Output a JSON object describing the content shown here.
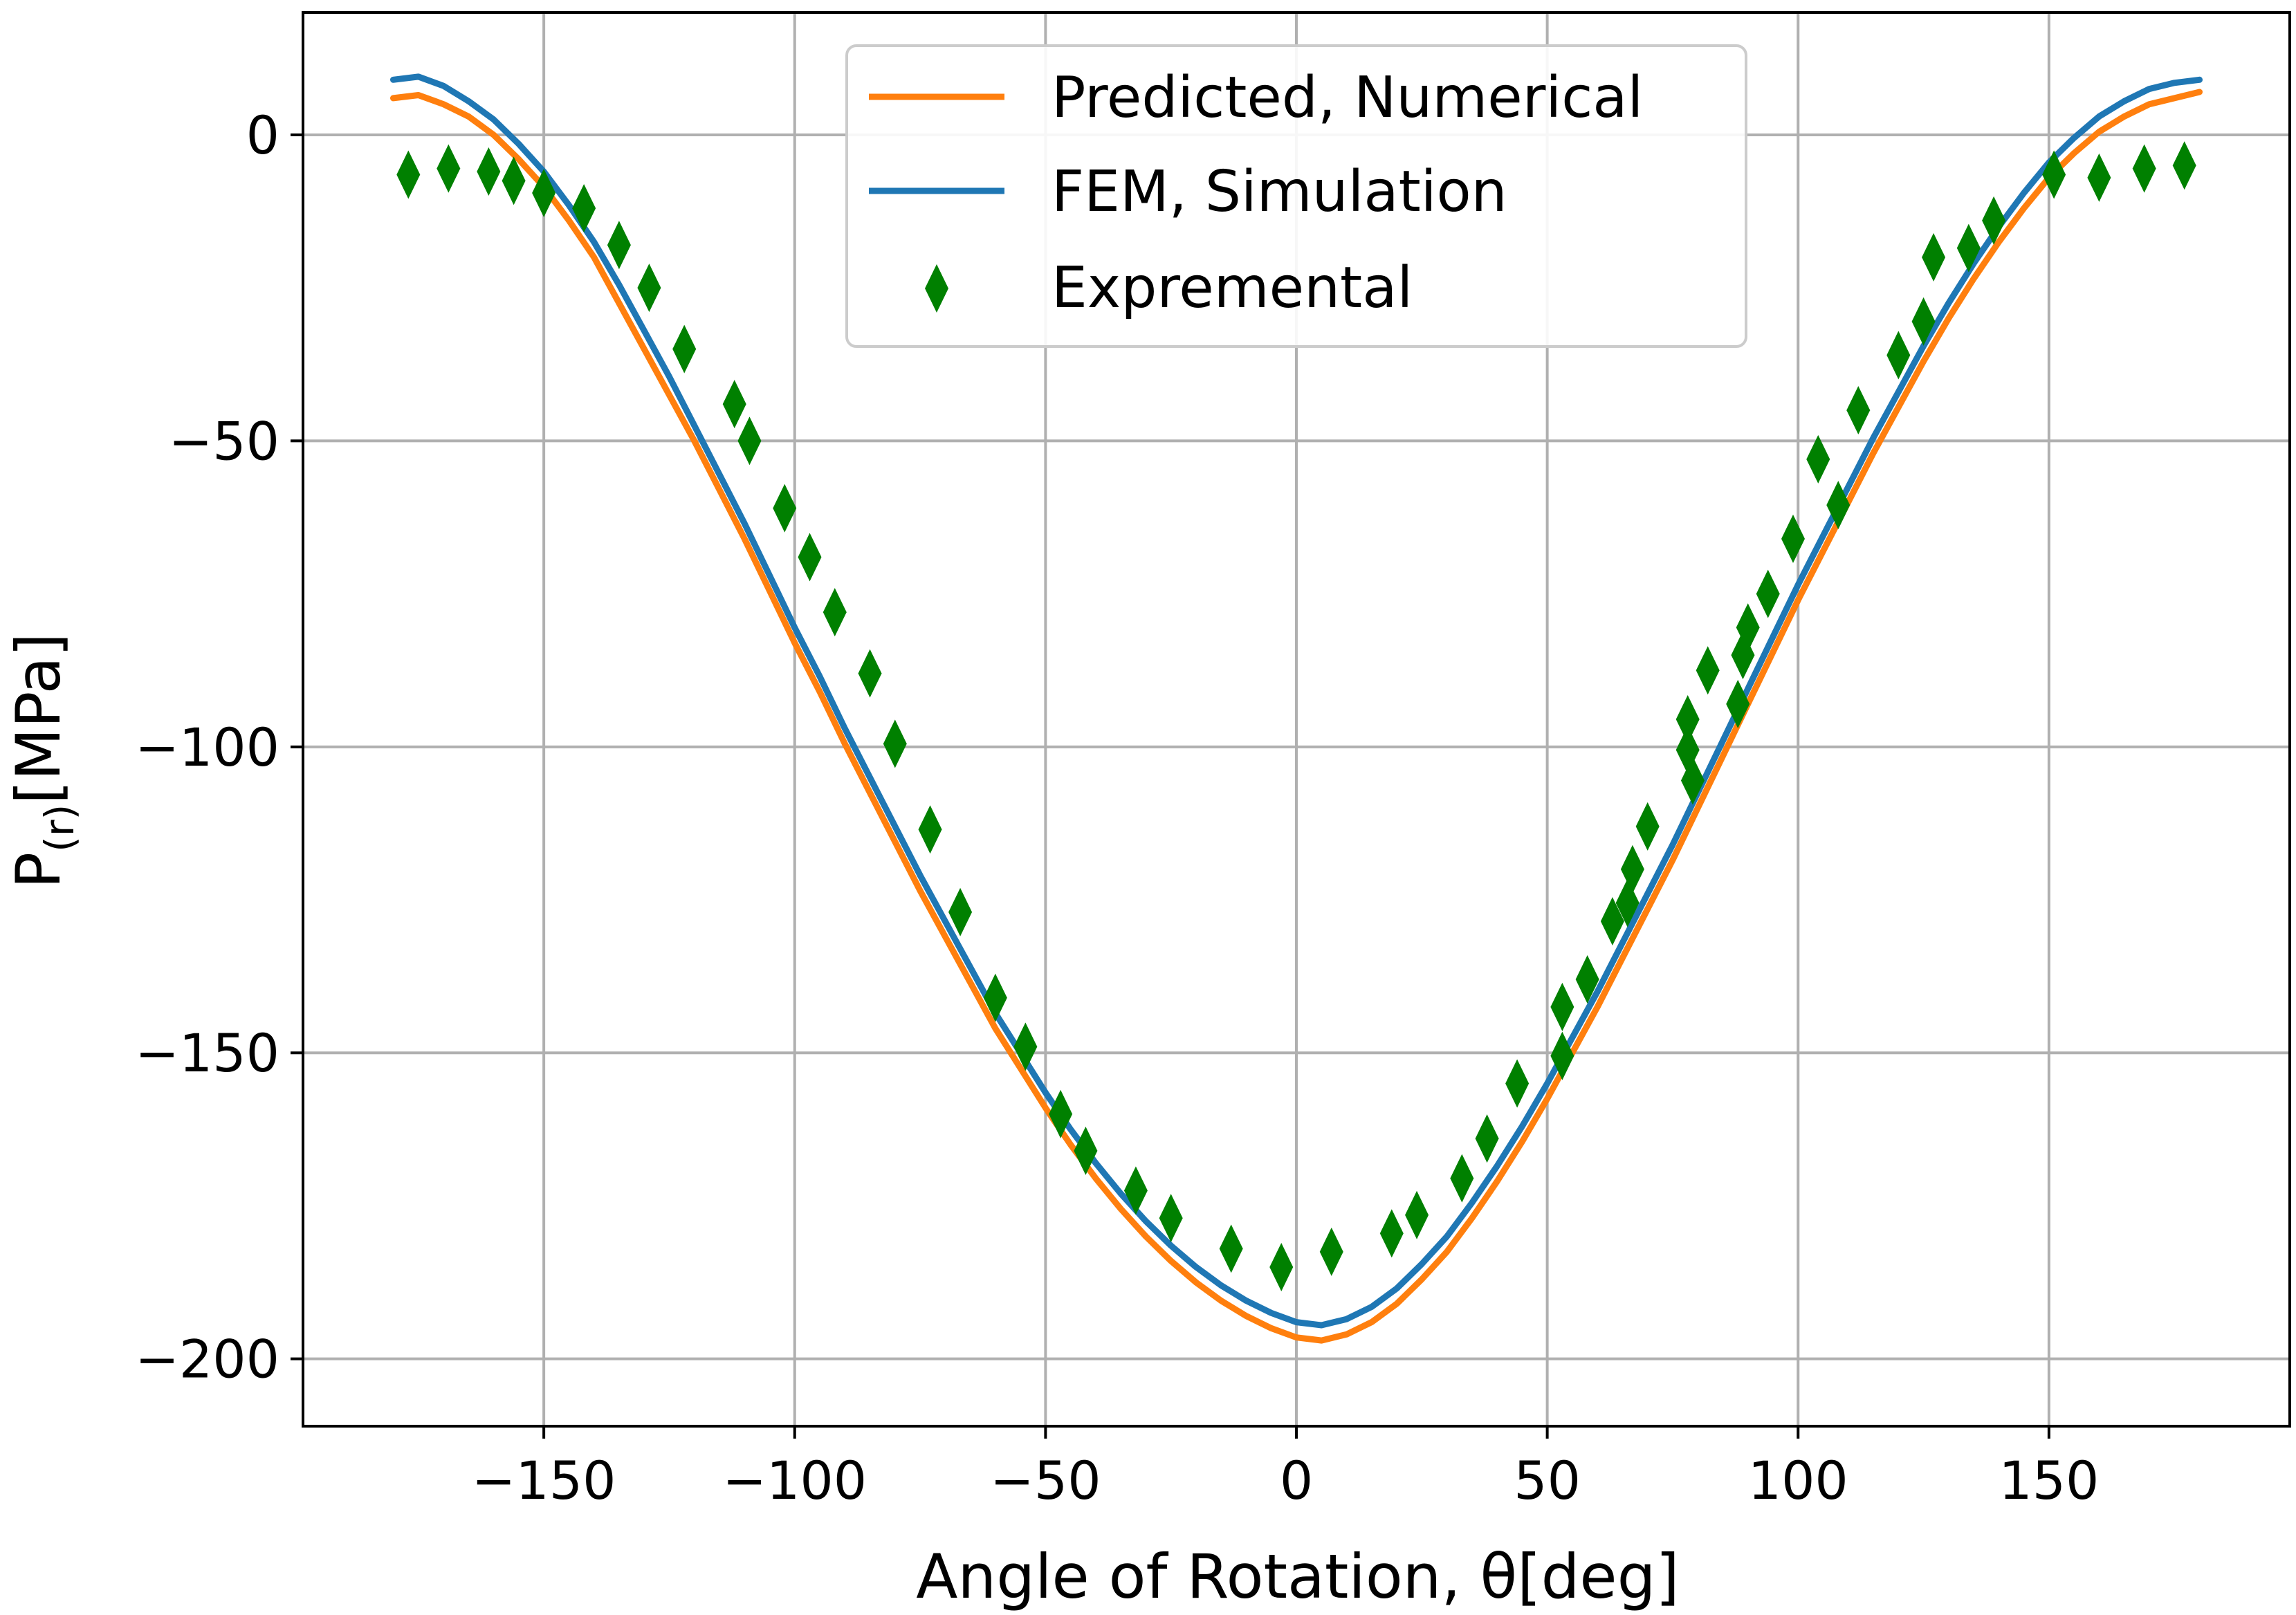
{
  "chart_data": {
    "type": "line",
    "title": "",
    "xlabel": "Angle of Rotation, θ[deg]",
    "ylabel": {
      "main": "P",
      "sub": "(r)",
      "unit": "[MPa]"
    },
    "xlim": [
      -198,
      198
    ],
    "ylim": [
      -211,
      20
    ],
    "grid": true,
    "legend_position": "top-center",
    "x_ticks": [
      {
        "value": -150,
        "label": "−150"
      },
      {
        "value": -100,
        "label": "−100"
      },
      {
        "value": -50,
        "label": "−50"
      },
      {
        "value": 0,
        "label": "0"
      },
      {
        "value": 50,
        "label": "50"
      },
      {
        "value": 100,
        "label": "100"
      },
      {
        "value": 150,
        "label": "150"
      }
    ],
    "y_ticks": [
      {
        "value": 0,
        "label": "0"
      },
      {
        "value": -50,
        "label": "−50"
      },
      {
        "value": -100,
        "label": "−100"
      },
      {
        "value": -150,
        "label": "−150"
      },
      {
        "value": -200,
        "label": "−200"
      }
    ],
    "series": [
      {
        "name": "Predicted, Numerical",
        "kind": "line",
        "color": "#ff7f0e",
        "points": [
          [
            -180,
            6
          ],
          [
            -175,
            6.5
          ],
          [
            -170,
            5
          ],
          [
            -165,
            3
          ],
          [
            -160,
            0
          ],
          [
            -155,
            -4
          ],
          [
            -150,
            -8.5
          ],
          [
            -145,
            -14
          ],
          [
            -140,
            -20
          ],
          [
            -135,
            -27.5
          ],
          [
            -130,
            -35
          ],
          [
            -125,
            -42.5
          ],
          [
            -120,
            -50
          ],
          [
            -115,
            -58
          ],
          [
            -110,
            -66
          ],
          [
            -105,
            -74.5
          ],
          [
            -100,
            -83
          ],
          [
            -95,
            -91
          ],
          [
            -90,
            -99.5
          ],
          [
            -85,
            -107.5
          ],
          [
            -80,
            -115.5
          ],
          [
            -75,
            -123.5
          ],
          [
            -70,
            -131
          ],
          [
            -65,
            -138.5
          ],
          [
            -60,
            -146
          ],
          [
            -55,
            -152.5
          ],
          [
            -50,
            -159
          ],
          [
            -45,
            -165
          ],
          [
            -40,
            -170.5
          ],
          [
            -35,
            -175.5
          ],
          [
            -30,
            -180
          ],
          [
            -25,
            -184
          ],
          [
            -20,
            -187.5
          ],
          [
            -15,
            -190.5
          ],
          [
            -10,
            -193
          ],
          [
            -5,
            -195
          ],
          [
            0,
            -196.5
          ],
          [
            5,
            -197
          ],
          [
            10,
            -196
          ],
          [
            15,
            -194
          ],
          [
            20,
            -191
          ],
          [
            25,
            -187
          ],
          [
            30,
            -182.5
          ],
          [
            35,
            -177
          ],
          [
            40,
            -171
          ],
          [
            45,
            -164.5
          ],
          [
            50,
            -157.5
          ],
          [
            55,
            -150
          ],
          [
            60,
            -142.5
          ],
          [
            65,
            -134.5
          ],
          [
            70,
            -126.5
          ],
          [
            75,
            -118.5
          ],
          [
            80,
            -110
          ],
          [
            85,
            -101.5
          ],
          [
            90,
            -93
          ],
          [
            95,
            -84.5
          ],
          [
            100,
            -76
          ],
          [
            105,
            -68
          ],
          [
            110,
            -60
          ],
          [
            115,
            -52
          ],
          [
            120,
            -44.5
          ],
          [
            125,
            -37
          ],
          [
            130,
            -30
          ],
          [
            135,
            -23.5
          ],
          [
            140,
            -17.5
          ],
          [
            145,
            -12
          ],
          [
            150,
            -7
          ],
          [
            155,
            -3
          ],
          [
            160,
            0.5
          ],
          [
            165,
            3
          ],
          [
            170,
            5
          ],
          [
            175,
            6
          ],
          [
            180,
            7
          ]
        ]
      },
      {
        "name": "FEM, Simulation",
        "kind": "line",
        "color": "#1f77b4",
        "points": [
          [
            -180,
            9
          ],
          [
            -175,
            9.5
          ],
          [
            -170,
            8
          ],
          [
            -165,
            5.5
          ],
          [
            -160,
            2.5
          ],
          [
            -155,
            -1.5
          ],
          [
            -150,
            -6
          ],
          [
            -145,
            -11.5
          ],
          [
            -140,
            -17.5
          ],
          [
            -135,
            -24.5
          ],
          [
            -130,
            -32
          ],
          [
            -125,
            -39.5
          ],
          [
            -120,
            -47.5
          ],
          [
            -115,
            -55.5
          ],
          [
            -110,
            -63.5
          ],
          [
            -105,
            -72
          ],
          [
            -100,
            -80.5
          ],
          [
            -95,
            -88.5
          ],
          [
            -90,
            -97
          ],
          [
            -85,
            -105
          ],
          [
            -80,
            -113
          ],
          [
            -75,
            -121
          ],
          [
            -70,
            -128.5
          ],
          [
            -65,
            -136
          ],
          [
            -60,
            -143.5
          ],
          [
            -55,
            -150
          ],
          [
            -50,
            -156.5
          ],
          [
            -45,
            -162.5
          ],
          [
            -40,
            -168
          ],
          [
            -35,
            -173
          ],
          [
            -30,
            -177.5
          ],
          [
            -25,
            -181.5
          ],
          [
            -20,
            -185
          ],
          [
            -15,
            -188
          ],
          [
            -10,
            -190.5
          ],
          [
            -5,
            -192.5
          ],
          [
            0,
            -194
          ],
          [
            5,
            -194.5
          ],
          [
            10,
            -193.5
          ],
          [
            15,
            -191.5
          ],
          [
            20,
            -188.5
          ],
          [
            25,
            -184.5
          ],
          [
            30,
            -180
          ],
          [
            35,
            -174.5
          ],
          [
            40,
            -168.5
          ],
          [
            45,
            -162
          ],
          [
            50,
            -155
          ],
          [
            55,
            -147.5
          ],
          [
            60,
            -140
          ],
          [
            65,
            -132
          ],
          [
            70,
            -124
          ],
          [
            75,
            -116
          ],
          [
            80,
            -107.5
          ],
          [
            85,
            -99
          ],
          [
            90,
            -90.5
          ],
          [
            95,
            -82
          ],
          [
            100,
            -73.5
          ],
          [
            105,
            -65.5
          ],
          [
            110,
            -57.5
          ],
          [
            115,
            -49.5
          ],
          [
            120,
            -42
          ],
          [
            125,
            -34.5
          ],
          [
            130,
            -27.5
          ],
          [
            135,
            -21
          ],
          [
            140,
            -15
          ],
          [
            145,
            -9.5
          ],
          [
            150,
            -4.5
          ],
          [
            155,
            -0.5
          ],
          [
            160,
            3
          ],
          [
            165,
            5.5
          ],
          [
            170,
            7.5
          ],
          [
            175,
            8.5
          ],
          [
            180,
            9
          ]
        ]
      },
      {
        "name": "Expremental",
        "kind": "scatter",
        "marker": "diamond",
        "color": "#008000",
        "points": [
          [
            -177,
            -6.5
          ],
          [
            -169,
            -5.5
          ],
          [
            -161,
            -6
          ],
          [
            -156,
            -7.5
          ],
          [
            -150,
            -9.5
          ],
          [
            -142,
            -12
          ],
          [
            -135,
            -18
          ],
          [
            -129,
            -25
          ],
          [
            -122,
            -35
          ],
          [
            -112,
            -44
          ],
          [
            -109,
            -50
          ],
          [
            -102,
            -61
          ],
          [
            -97,
            -69
          ],
          [
            -92,
            -78
          ],
          [
            -85,
            -88
          ],
          [
            -80,
            -99.5
          ],
          [
            -73,
            -113.5
          ],
          [
            -67,
            -127
          ],
          [
            -60,
            -141
          ],
          [
            -54,
            -149
          ],
          [
            -47,
            -160
          ],
          [
            -42,
            -166
          ],
          [
            -32,
            -172.5
          ],
          [
            -25,
            -177
          ],
          [
            -13,
            -182
          ],
          [
            -3,
            -185
          ],
          [
            7,
            -182.5
          ],
          [
            19,
            -179.5
          ],
          [
            24,
            -176.5
          ],
          [
            33,
            -170.5
          ],
          [
            38,
            -164
          ],
          [
            44,
            -155
          ],
          [
            53,
            -142.5
          ],
          [
            53,
            -150.5
          ],
          [
            58,
            -138
          ],
          [
            63,
            -128.5
          ],
          [
            66,
            -125.5
          ],
          [
            67,
            -120
          ],
          [
            70,
            -113
          ],
          [
            78,
            -95.5
          ],
          [
            78,
            -100.5
          ],
          [
            79,
            -105.5
          ],
          [
            82,
            -87.5
          ],
          [
            88,
            -93
          ],
          [
            89,
            -85
          ],
          [
            90,
            -80.5
          ],
          [
            94,
            -75
          ],
          [
            99,
            -66
          ],
          [
            104,
            -53
          ],
          [
            108,
            -60.5
          ],
          [
            112,
            -45
          ],
          [
            120,
            -36
          ],
          [
            125,
            -30.5
          ],
          [
            127,
            -20
          ],
          [
            134,
            -18.5
          ],
          [
            139,
            -14
          ],
          [
            151,
            -6.5
          ],
          [
            160,
            -7
          ],
          [
            169,
            -5.5
          ],
          [
            177,
            -5
          ]
        ]
      }
    ]
  }
}
